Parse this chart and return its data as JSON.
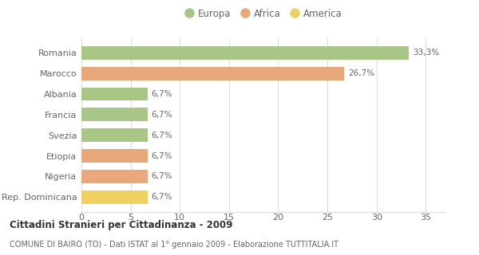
{
  "categories": [
    "Romania",
    "Marocco",
    "Albania",
    "Francia",
    "Svezia",
    "Etiopia",
    "Nigeria",
    "Rep. Dominicana"
  ],
  "values": [
    33.3,
    26.7,
    6.7,
    6.7,
    6.7,
    6.7,
    6.7,
    6.7
  ],
  "labels": [
    "33,3%",
    "26,7%",
    "6,7%",
    "6,7%",
    "6,7%",
    "6,7%",
    "6,7%",
    "6,7%"
  ],
  "colors": [
    "#a8c686",
    "#e8a87c",
    "#a8c686",
    "#a8c686",
    "#a8c686",
    "#e8a87c",
    "#e8a87c",
    "#f0d060"
  ],
  "legend": [
    {
      "label": "Europa",
      "color": "#a8c686"
    },
    {
      "label": "Africa",
      "color": "#e8a87c"
    },
    {
      "label": "America",
      "color": "#f0d060"
    }
  ],
  "title": "Cittadini Stranieri per Cittadinanza - 2009",
  "subtitle": "COMUNE DI BAIRO (TO) - Dati ISTAT al 1° gennaio 2009 - Elaborazione TUTTITALIA.IT",
  "xlim": [
    0,
    37
  ],
  "xticks": [
    0,
    5,
    10,
    15,
    20,
    25,
    30,
    35
  ],
  "background_color": "#ffffff",
  "grid_color": "#dddddd",
  "bar_height": 0.65
}
